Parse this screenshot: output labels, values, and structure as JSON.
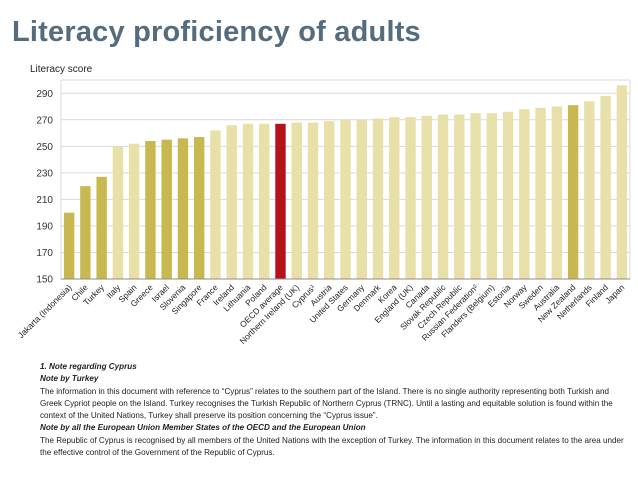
{
  "page": {
    "title": "Literacy proficiency of adults"
  },
  "notes": [
    {
      "kind": "hd",
      "text": "1. Note regarding Cyprus"
    },
    {
      "kind": "hd",
      "text": "Note by Turkey"
    },
    {
      "kind": "tx",
      "text": "The information in this document with reference to “Cyprus” relates to the southern part of the Island. There is no single authority representing both Turkish and Greek Cypriot people on the Island. Turkey recognises the Turkish Republic of Northern Cyprus (TRNC). Until a lasting and equitable solution is found within the context of the United Nations, Turkey shall preserve its position concerning the “Cyprus issue”."
    },
    {
      "kind": "hd",
      "text": "Note by all the European Union Member States of the OECD and the European Union"
    },
    {
      "kind": "tx",
      "text": "The Republic of Cyprus is recognised by all members of the United Nations with the exception of Turkey.  The information in this document relates to the area under the effective control of the Government of the Republic of Cyprus."
    }
  ],
  "colors": {
    "light": "#e7e0a8",
    "highlight": "#c7b84f",
    "oecd": "#b5121b",
    "grid": "#d9d9d9",
    "axis": "#8c8c8c",
    "title": "#556b7e"
  },
  "chart_data": {
    "type": "bar",
    "ylabel": "Literacy score",
    "ylim": [
      150,
      300
    ],
    "yticks": [
      150,
      170,
      190,
      210,
      230,
      250,
      270,
      290
    ],
    "grid": true,
    "categories": [
      "Jakarta (Indonesia)",
      "Chile",
      "Turkey",
      "Italy",
      "Spain",
      "Greece",
      "Israel",
      "Slovenia",
      "Singapore",
      "France",
      "Ireland",
      "Lithuania",
      "Poland",
      "OECD average",
      "Northern Ireland (UK)",
      "Cyprus¹",
      "Austria",
      "United States",
      "Germany",
      "Denmark",
      "Korea",
      "England (UK)",
      "Canada",
      "Slovak Republic",
      "Czech Republic",
      "Russian Federation²",
      "Flanders (Belgium)",
      "Estonia",
      "Norway",
      "Sweden",
      "Australia",
      "New Zealand",
      "Netherlands",
      "Finland",
      "Japan"
    ],
    "values": [
      200,
      220,
      227,
      250,
      252,
      254,
      255,
      256,
      257,
      262,
      266,
      267,
      267,
      267,
      268,
      268,
      269,
      270,
      270,
      271,
      272,
      272,
      273,
      274,
      274,
      275,
      275,
      276,
      278,
      279,
      280,
      281,
      284,
      288,
      296
    ],
    "highlight": [
      "Jakarta (Indonesia)",
      "Chile",
      "Turkey",
      "Greece",
      "Israel",
      "Slovenia",
      "Singapore",
      "New Zealand"
    ],
    "reference": "OECD average"
  }
}
